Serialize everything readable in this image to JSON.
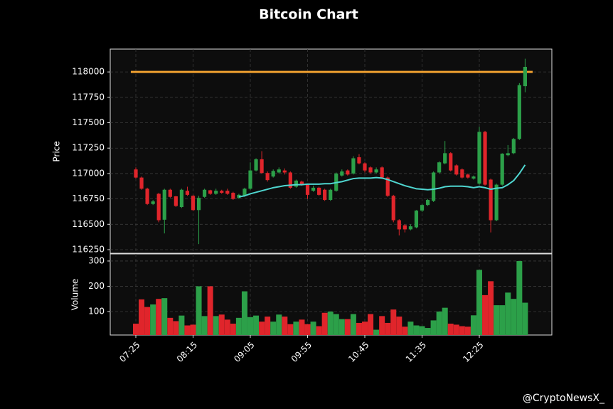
{
  "chart_data": {
    "type": "candlestick",
    "title": "Bitcoin Chart",
    "ylabel": "Price",
    "categories": [
      "07:25",
      null,
      null,
      null,
      null,
      null,
      null,
      null,
      null,
      null,
      "08:15",
      null,
      null,
      null,
      null,
      null,
      null,
      null,
      null,
      null,
      "09:05",
      null,
      null,
      null,
      null,
      null,
      null,
      null,
      null,
      null,
      "09:55",
      null,
      null,
      null,
      null,
      null,
      null,
      null,
      null,
      null,
      "10:45",
      null,
      null,
      null,
      null,
      null,
      null,
      null,
      null,
      null,
      "11:35",
      null,
      null,
      null,
      null,
      null,
      null,
      null,
      null,
      null,
      "12:25",
      null,
      null,
      null,
      null,
      null,
      null,
      null,
      null
    ],
    "open": [
      117040,
      116960,
      116850,
      116700,
      116800,
      116545,
      116840,
      116775,
      116670,
      116830,
      116780,
      116640,
      116770,
      116835,
      116800,
      116830,
      116830,
      116810,
      116760,
      116780,
      116850,
      117030,
      117140,
      117005,
      116970,
      117010,
      117030,
      117010,
      116870,
      116920,
      116890,
      116830,
      116860,
      116840,
      116740,
      116830,
      116980,
      117030,
      117000,
      117160,
      117100,
      117060,
      117010,
      117060,
      116960,
      116780,
      116540,
      116490,
      116450,
      116470,
      116635,
      116690,
      116730,
      117010,
      117100,
      117200,
      117080,
      117040,
      116990,
      116950,
      116900,
      117410,
      116940,
      116540,
      116890,
      117180,
      117200,
      117340,
      117860
    ],
    "close": [
      116960,
      116850,
      116700,
      116725,
      116540,
      116840,
      116770,
      116680,
      116840,
      116790,
      116640,
      116760,
      116840,
      116800,
      116830,
      116810,
      116800,
      116750,
      116790,
      116850,
      117030,
      117140,
      117005,
      116935,
      117025,
      117040,
      117010,
      116860,
      116930,
      116890,
      116790,
      116860,
      116790,
      116740,
      116840,
      117000,
      117020,
      116990,
      117150,
      117100,
      117030,
      117010,
      117040,
      116960,
      116780,
      116540,
      116450,
      116450,
      116480,
      116635,
      116690,
      116740,
      117010,
      117110,
      117200,
      117030,
      116990,
      116960,
      116960,
      116970,
      117410,
      116890,
      116540,
      116890,
      117195,
      117200,
      117340,
      117870,
      118050
    ],
    "high": [
      117060,
      116970,
      116860,
      116740,
      116810,
      116850,
      116850,
      116780,
      116850,
      116870,
      116790,
      116780,
      116850,
      116840,
      116850,
      116840,
      116850,
      116820,
      116800,
      116860,
      117110,
      117150,
      117220,
      117020,
      117040,
      117060,
      117050,
      117020,
      116940,
      116930,
      116900,
      116880,
      116870,
      116850,
      116850,
      117010,
      117040,
      117040,
      117170,
      117190,
      117110,
      117070,
      117060,
      117070,
      116970,
      116790,
      116550,
      116500,
      116500,
      116640,
      116700,
      116750,
      117020,
      117120,
      117320,
      117210,
      117090,
      117050,
      117000,
      116980,
      117460,
      117420,
      116950,
      116900,
      117200,
      117280,
      117350,
      117890,
      118130
    ],
    "low": [
      116950,
      116840,
      116690,
      116690,
      116520,
      116410,
      116760,
      116670,
      116660,
      116780,
      116630,
      116305,
      116760,
      116790,
      116790,
      116800,
      116790,
      116740,
      116750,
      116770,
      116840,
      117020,
      117000,
      116920,
      116960,
      117000,
      116990,
      116850,
      116860,
      116880,
      116750,
      116820,
      116780,
      116730,
      116730,
      116820,
      116970,
      116980,
      116990,
      117090,
      117010,
      117000,
      117000,
      116950,
      116770,
      116520,
      116390,
      116420,
      116440,
      116460,
      116620,
      116680,
      116720,
      117000,
      117090,
      117020,
      116980,
      116950,
      116950,
      116940,
      116890,
      116880,
      116420,
      116530,
      116880,
      117170,
      117190,
      117330,
      117800
    ],
    "up_color": "#2ca049",
    "down_color": "#e0252b",
    "ylim": [
      116215,
      118225
    ],
    "yticks": [
      116250,
      116500,
      116750,
      117000,
      117250,
      117500,
      117750,
      118000
    ],
    "grid": true,
    "ma": {
      "color": "#4fd6d0",
      "values": [
        null,
        null,
        null,
        null,
        null,
        null,
        null,
        null,
        null,
        null,
        null,
        null,
        null,
        null,
        null,
        null,
        null,
        null,
        116770,
        116780,
        116800,
        116815,
        116830,
        116845,
        116860,
        116870,
        116880,
        116885,
        116890,
        116890,
        116895,
        116895,
        116895,
        116900,
        116900,
        116910,
        116920,
        116935,
        116950,
        116955,
        116955,
        116955,
        116960,
        116955,
        116940,
        116920,
        116900,
        116880,
        116865,
        116850,
        116845,
        116840,
        116845,
        116855,
        116870,
        116875,
        116875,
        116875,
        116870,
        116860,
        116870,
        116860,
        116845,
        116855,
        116860,
        116890,
        116930,
        117000,
        117085
      ]
    },
    "hline": {
      "value": 118000,
      "color": "#f0a030"
    },
    "volume": {
      "ylabel": "Volume",
      "ylim": [
        7,
        328
      ],
      "yticks": [
        100,
        200,
        300
      ],
      "values": [
        52,
        148,
        118,
        128,
        150,
        153,
        75,
        62,
        84,
        45,
        48,
        200,
        82,
        200,
        82,
        88,
        68,
        52,
        75,
        180,
        78,
        84,
        60,
        80,
        60,
        88,
        80,
        50,
        60,
        68,
        50,
        60,
        42,
        95,
        100,
        90,
        70,
        70,
        90,
        55,
        60,
        90,
        28,
        82,
        55,
        108,
        80,
        40,
        60,
        45,
        42,
        35,
        65,
        100,
        115,
        52,
        48,
        42,
        40,
        85,
        265,
        165,
        220,
        125,
        125,
        175,
        150,
        300,
        135
      ]
    }
  },
  "watermark": "@CryptoNewsX_"
}
